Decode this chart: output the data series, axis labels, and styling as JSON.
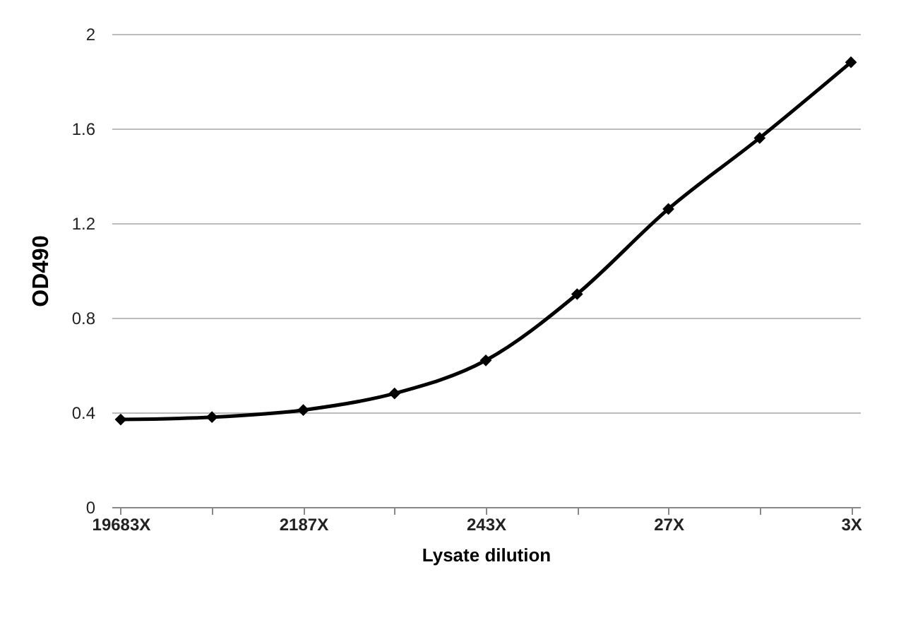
{
  "chart_data": {
    "type": "line",
    "xlabel": "Lysate dilution",
    "ylabel": "OD490",
    "categories": [
      "19683X",
      null,
      "2187X",
      null,
      "243X",
      null,
      "27X",
      null,
      "3X"
    ],
    "series": [
      {
        "color": "#000000",
        "values": [
          0.37,
          0.38,
          0.41,
          0.48,
          0.62,
          0.9,
          1.26,
          1.56,
          1.88
        ]
      }
    ],
    "ylim": [
      0,
      2
    ],
    "yticks": [
      0,
      0.4,
      0.8,
      1.2,
      1.6,
      2
    ],
    "grid": "y",
    "marker": "diamond",
    "line_style": "solid",
    "legend": false
  }
}
